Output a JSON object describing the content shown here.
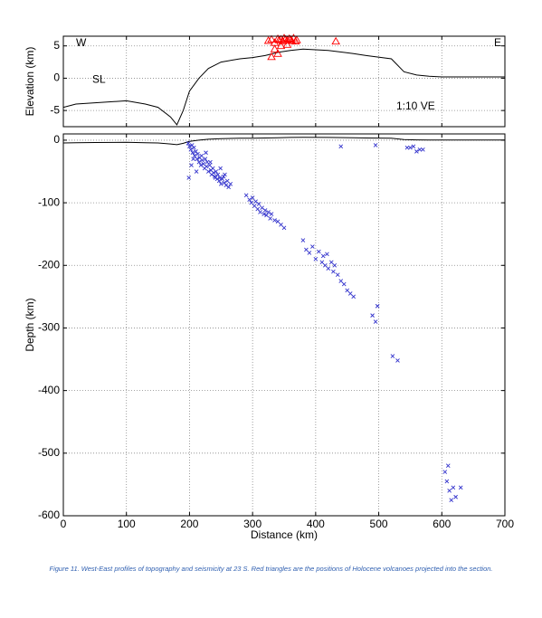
{
  "chart_data": [
    {
      "type": "line",
      "ylabel": "Elevation (km)",
      "xlim": [
        0,
        700
      ],
      "xticks": [
        0,
        100,
        200,
        300,
        400,
        500,
        600,
        700
      ],
      "ylim": [
        -7.5,
        6.5
      ],
      "yticks": [
        5,
        0,
        -5
      ],
      "grid": true,
      "annotations": [
        "W",
        "E",
        "SL",
        "1:10 VE"
      ],
      "series": [
        {
          "color": "#000000",
          "x": [
            0,
            20,
            50,
            100,
            130,
            150,
            170,
            180,
            190,
            200,
            215,
            230,
            250,
            280,
            300,
            320,
            340,
            360,
            380,
            420,
            460,
            480,
            520,
            540,
            560,
            580,
            600,
            700
          ],
          "values": [
            -4.5,
            -4,
            -3.8,
            -3.5,
            -4,
            -4.5,
            -6,
            -7.2,
            -5,
            -2,
            0,
            1.5,
            2.5,
            3,
            3.2,
            3.5,
            4,
            4.3,
            4.5,
            4.3,
            3.8,
            3.5,
            3,
            1,
            0.5,
            0.3,
            0.2,
            0.2
          ]
        },
        {
          "color": "#ff0000",
          "marker": "triangle",
          "x": [
            325,
            330,
            335,
            340,
            342,
            345,
            348,
            350,
            352,
            355,
            358,
            360,
            362,
            365,
            368,
            370,
            335,
            345,
            355,
            330,
            340,
            432
          ],
          "values": [
            5.8,
            6,
            5.5,
            6.1,
            5.9,
            6,
            5.7,
            6.2,
            6,
            5.9,
            6.1,
            6,
            5.8,
            6.2,
            5.7,
            5.9,
            4.5,
            5,
            5.2,
            3.3,
            3.8,
            5.7
          ]
        }
      ]
    },
    {
      "type": "scatter",
      "xlabel": "Distance (km)",
      "ylabel": "Depth (km)",
      "xlim": [
        0,
        700
      ],
      "xticks": [
        0,
        100,
        200,
        300,
        400,
        500,
        600,
        700
      ],
      "ylim": [
        -600,
        10
      ],
      "yticks": [
        0,
        -100,
        -200,
        -300,
        -400,
        -500,
        -600
      ],
      "grid": true,
      "series": [
        {
          "color": "#3333cc",
          "marker": "x",
          "x": [
            198,
            200,
            202,
            204,
            205,
            207,
            208,
            210,
            212,
            213,
            215,
            216,
            218,
            220,
            222,
            224,
            225,
            227,
            228,
            230,
            232,
            234,
            235,
            237,
            238,
            240,
            242,
            244,
            245,
            247,
            248,
            250,
            252,
            254,
            255,
            258,
            260,
            262,
            265,
            203,
            206,
            211,
            219,
            226,
            233,
            241,
            249,
            256,
            199,
            290,
            295,
            298,
            300,
            303,
            305,
            308,
            310,
            312,
            315,
            318,
            320,
            322,
            325,
            328,
            330,
            335,
            340,
            345,
            350,
            380,
            385,
            390,
            395,
            400,
            405,
            410,
            412,
            415,
            418,
            420,
            425,
            428,
            430,
            435,
            440,
            445,
            450,
            455,
            460,
            490,
            495,
            498,
            522,
            530,
            605,
            608,
            610,
            612,
            615,
            618,
            622,
            630,
            440,
            495,
            550,
            555,
            560,
            565,
            570,
            545
          ],
          "values": [
            -5,
            -10,
            -15,
            -8,
            -20,
            -12,
            -25,
            -18,
            -30,
            -22,
            -35,
            -28,
            -40,
            -32,
            -38,
            -45,
            -30,
            -42,
            -35,
            -50,
            -40,
            -48,
            -55,
            -45,
            -52,
            -58,
            -50,
            -62,
            -55,
            -65,
            -60,
            -70,
            -62,
            -58,
            -68,
            -72,
            -65,
            -75,
            -70,
            -40,
            -30,
            -50,
            -25,
            -20,
            -35,
            -60,
            -45,
            -55,
            -60,
            -88,
            -95,
            -100,
            -92,
            -105,
            -98,
            -110,
            -102,
            -115,
            -108,
            -118,
            -112,
            -120,
            -115,
            -125,
            -118,
            -128,
            -130,
            -135,
            -140,
            -160,
            -175,
            -180,
            -170,
            -190,
            -178,
            -195,
            -185,
            -200,
            -182,
            -205,
            -195,
            -210,
            -200,
            -215,
            -225,
            -230,
            -240,
            -245,
            -250,
            -280,
            -290,
            -265,
            -345,
            -352,
            -530,
            -545,
            -520,
            -560,
            -575,
            -555,
            -570,
            -555,
            -10,
            -8,
            -12,
            -10,
            -18,
            -15,
            -15,
            -12
          ]
        }
      ]
    }
  ],
  "caption": "Figure 11. West-East profiles of topography and seismicity at 23 S. Red triangles are the positions of Holocene volcanoes projected into the section."
}
